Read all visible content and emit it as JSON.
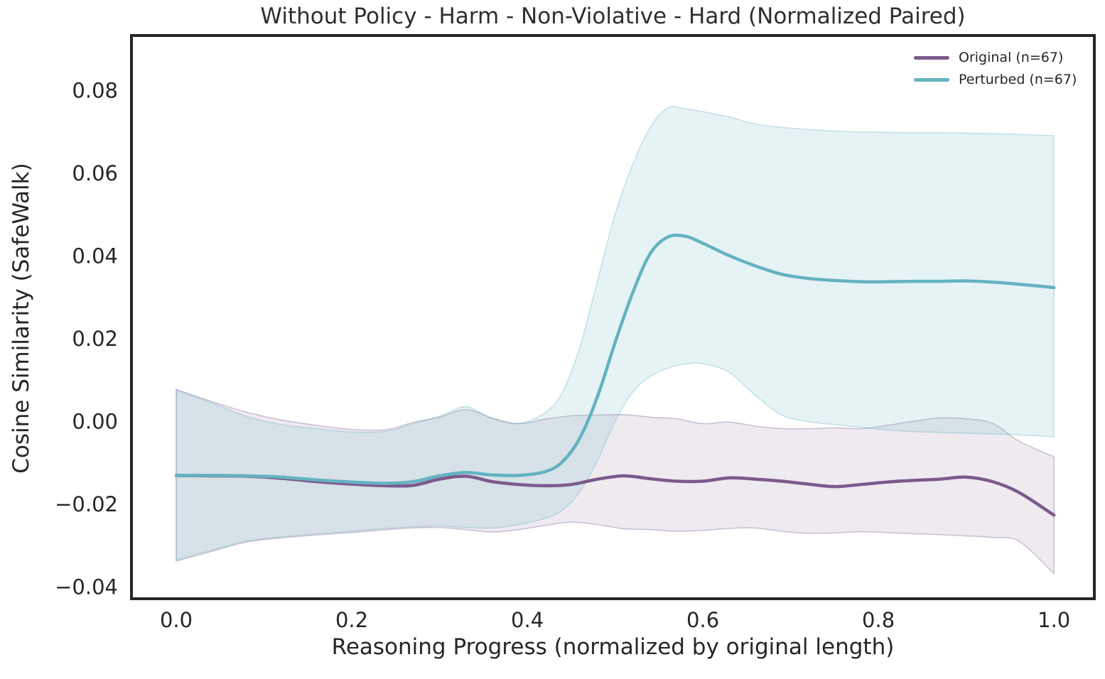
{
  "chart_data": {
    "type": "line",
    "title": "Without Policy - Harm - Non-Violative - Hard (Normalized Paired)",
    "xlabel": "Reasoning Progress (normalized by original length)",
    "ylabel": "Cosine Similarity (SafeWalk)",
    "grid": false,
    "legend_position": "upper right",
    "axis_color": "#262626",
    "xlim": [
      -0.051,
      1.046
    ],
    "ylim": [
      -0.0429,
      0.0932
    ],
    "x_ticks": {
      "values": [
        0.0,
        0.2,
        0.4,
        0.6,
        0.8,
        1.0
      ],
      "labels": [
        "0.0",
        "0.2",
        "0.4",
        "0.6",
        "0.8",
        "1.0"
      ]
    },
    "y_ticks": {
      "values": [
        0.08,
        0.06,
        0.04,
        0.02,
        0.0,
        -0.02,
        -0.04
      ],
      "labels": [
        "0.08",
        "0.06",
        "0.04",
        "0.02",
        "0.00",
        "−0.02",
        "−0.04"
      ]
    },
    "series": [
      {
        "name": "Original",
        "label": "Original (n=67)",
        "color": "#7C5A8C",
        "band_opacity": 0.13,
        "x": [
          0,
          0.04,
          0.08,
          0.12,
          0.16,
          0.2,
          0.24,
          0.27,
          0.3,
          0.33,
          0.36,
          0.39,
          0.42,
          0.45,
          0.48,
          0.51,
          0.54,
          0.57,
          0.6,
          0.63,
          0.66,
          0.69,
          0.72,
          0.75,
          0.78,
          0.81,
          0.84,
          0.87,
          0.9,
          0.93,
          0.96,
          1
        ],
        "y": [
          -0.0131,
          -0.0132,
          -0.0133,
          -0.0138,
          -0.0146,
          -0.0152,
          -0.0156,
          -0.0155,
          -0.014,
          -0.0133,
          -0.0146,
          -0.0153,
          -0.0156,
          -0.0153,
          -0.014,
          -0.0132,
          -0.0139,
          -0.0145,
          -0.0145,
          -0.0137,
          -0.014,
          -0.0145,
          -0.0152,
          -0.0158,
          -0.0153,
          -0.0147,
          -0.0143,
          -0.014,
          -0.0135,
          -0.0146,
          -0.0172,
          -0.0227
        ],
        "band_lower": [
          -0.0338,
          -0.0315,
          -0.0292,
          -0.0282,
          -0.0275,
          -0.0269,
          -0.0262,
          -0.0258,
          -0.0257,
          -0.0262,
          -0.0268,
          -0.0262,
          -0.0252,
          -0.0244,
          -0.025,
          -0.026,
          -0.0262,
          -0.0266,
          -0.0264,
          -0.0259,
          -0.0258,
          -0.0266,
          -0.0271,
          -0.027,
          -0.0267,
          -0.0269,
          -0.0272,
          -0.0274,
          -0.0277,
          -0.0281,
          -0.029,
          -0.0368
        ],
        "band_upper": [
          0.0077,
          0.0048,
          0.0022,
          0.0003,
          -0.001,
          -0.002,
          -0.002,
          -0.0003,
          0.001,
          0.0028,
          0.0008,
          -0.0006,
          0.0005,
          0.0013,
          0.0015,
          0.0016,
          0.001,
          0.0006,
          -0.0006,
          -0.0002,
          -0.0012,
          -0.0018,
          -0.0018,
          -0.0016,
          -0.0018,
          -0.001,
          0,
          0.0008,
          0.0006,
          -0.0005,
          -0.0048,
          -0.0086
        ]
      },
      {
        "name": "Perturbed",
        "label": "Perturbed (n=67)",
        "color": "#64B2C2",
        "band_opacity": 0.16,
        "x": [
          0,
          0.04,
          0.08,
          0.12,
          0.16,
          0.2,
          0.24,
          0.27,
          0.3,
          0.33,
          0.36,
          0.39,
          0.42,
          0.44,
          0.46,
          0.48,
          0.5,
          0.52,
          0.54,
          0.56,
          0.58,
          0.6,
          0.63,
          0.66,
          0.69,
          0.72,
          0.75,
          0.78,
          0.81,
          0.84,
          0.87,
          0.9,
          0.93,
          0.96,
          1
        ],
        "y": [
          -0.0131,
          -0.0131,
          -0.0132,
          -0.0135,
          -0.0142,
          -0.0147,
          -0.015,
          -0.0146,
          -0.0132,
          -0.0124,
          -0.013,
          -0.0131,
          -0.0122,
          -0.0098,
          -0.004,
          0.006,
          0.019,
          0.031,
          0.0405,
          0.0445,
          0.0447,
          0.043,
          0.04,
          0.0375,
          0.0355,
          0.0345,
          0.034,
          0.0337,
          0.0337,
          0.0338,
          0.0338,
          0.0339,
          0.0336,
          0.0331,
          0.0323
        ],
        "band_lower": [
          -0.0335,
          -0.0312,
          -0.029,
          -0.028,
          -0.0272,
          -0.0266,
          -0.0259,
          -0.0255,
          -0.0253,
          -0.0257,
          -0.0258,
          -0.025,
          -0.0235,
          -0.0215,
          -0.017,
          -0.0095,
          0,
          0.007,
          0.0108,
          0.0128,
          0.0138,
          0.0139,
          0.0118,
          0.0062,
          0.0015,
          -0.0001,
          -0.0008,
          -0.0015,
          -0.0021,
          -0.0025,
          -0.0027,
          -0.0029,
          -0.0031,
          -0.0033,
          -0.0038
        ],
        "band_upper": [
          0.0075,
          0.0045,
          0.0012,
          -0.0008,
          -0.0018,
          -0.0026,
          -0.0024,
          -0.0006,
          0.0012,
          0.0035,
          0.0006,
          -0.0005,
          0.002,
          0.007,
          0.018,
          0.034,
          0.05,
          0.062,
          0.071,
          0.0757,
          0.0755,
          0.0748,
          0.0735,
          0.0718,
          0.071,
          0.0705,
          0.0701,
          0.0699,
          0.0698,
          0.0697,
          0.0697,
          0.0696,
          0.0695,
          0.0693,
          0.069
        ]
      }
    ]
  }
}
